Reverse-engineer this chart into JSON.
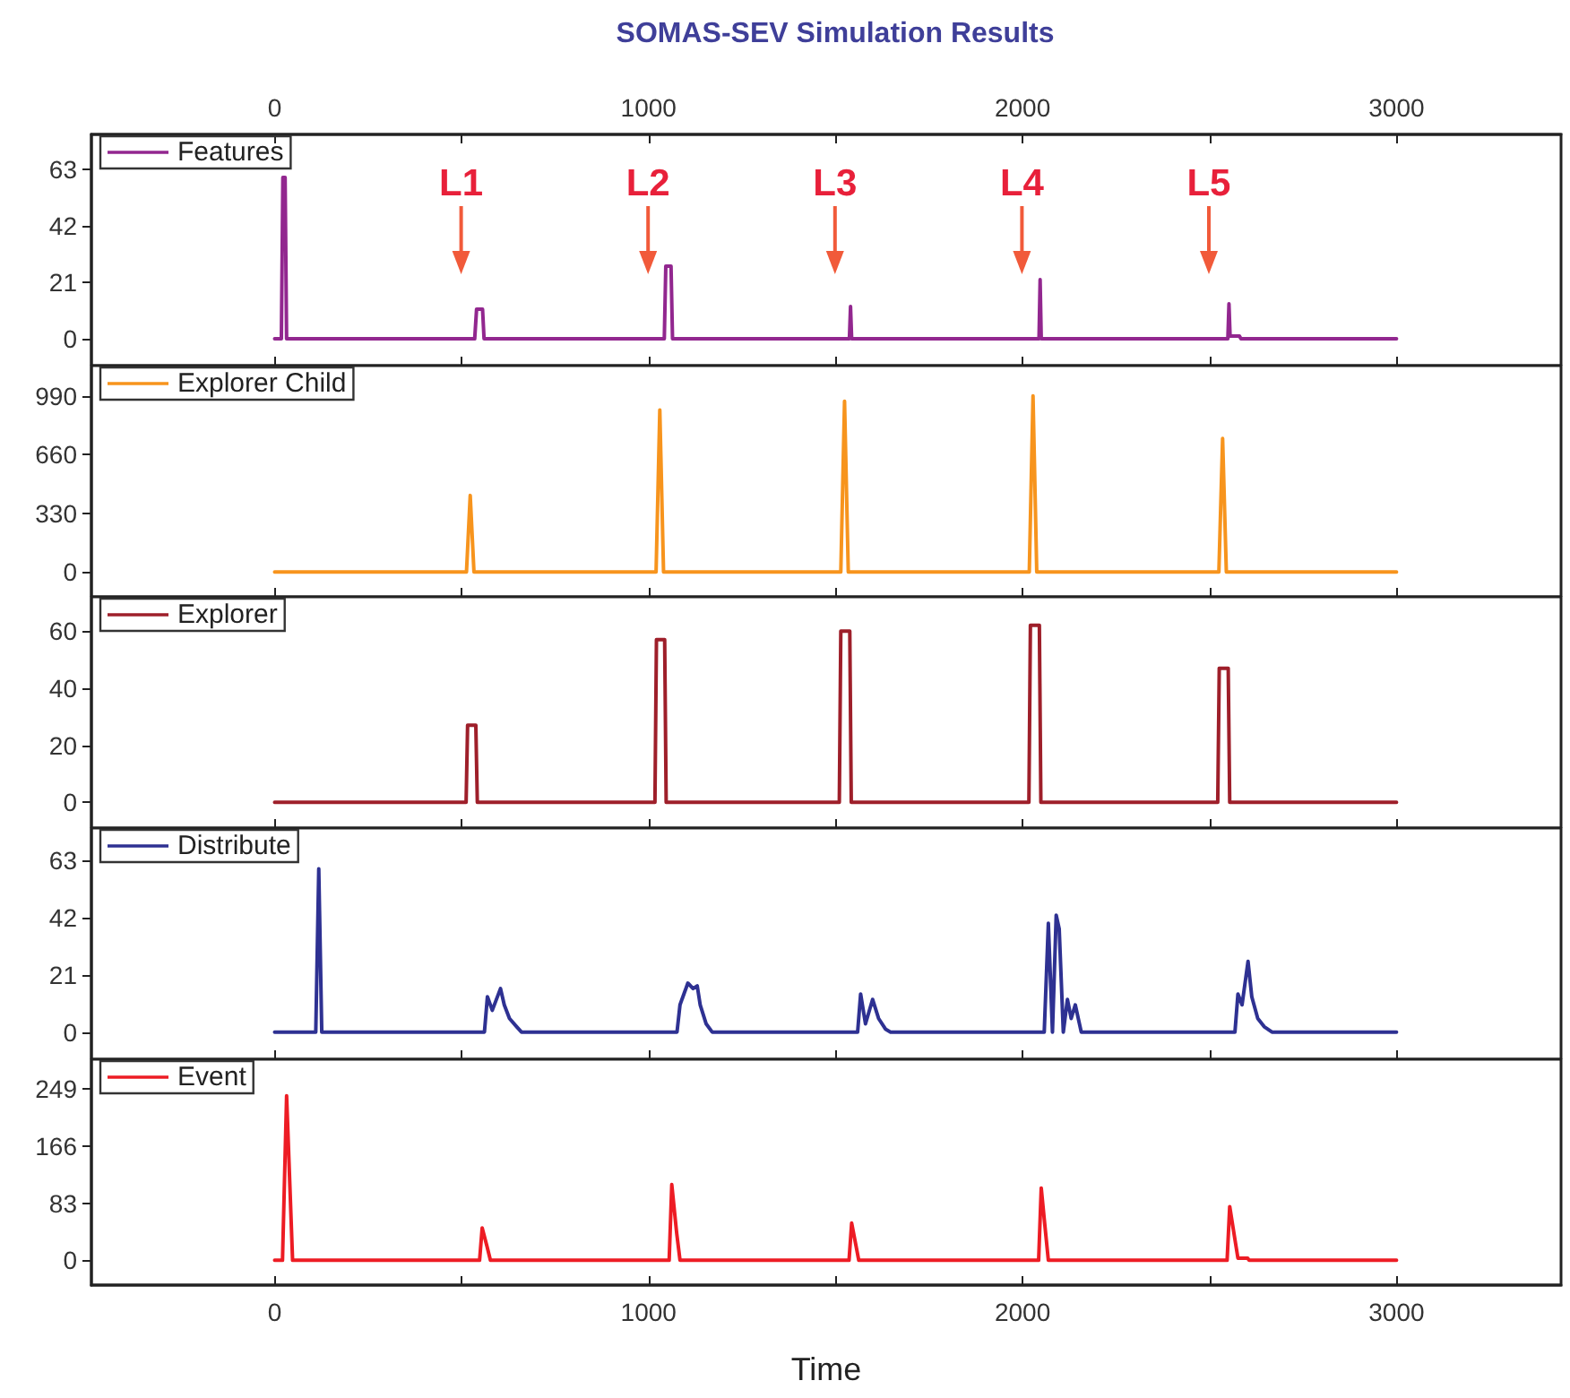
{
  "chart_data": [
    {
      "type": "line",
      "title": "SOMAS-SEV Simulation Results",
      "legend": "top left",
      "marker": "none",
      "line_style": "solid",
      "grid": false,
      "tick_labels": "y",
      "xlim": [
        -490,
        3440
      ],
      "xticks": [
        0,
        {
          "value": 500,
          "label": null
        },
        1000,
        {
          "value": 1500,
          "label": null
        },
        2000,
        {
          "value": 2500,
          "label": null
        },
        3000
      ],
      "x2lim": [
        -490,
        3440
      ],
      "x2ticks": [
        0,
        {
          "value": 500,
          "label": null
        },
        1000,
        {
          "value": 1500,
          "label": null
        },
        2000,
        {
          "value": 2500,
          "label": null
        },
        3000
      ],
      "ylim": [
        -10,
        76
      ],
      "yticks": [
        0,
        21,
        42,
        63
      ],
      "x": [
        0,
        18,
        22,
        28,
        32,
        535,
        540,
        556,
        560,
        1042,
        1046,
        1060,
        1064,
        1537,
        1540,
        1543,
        2044,
        2047,
        2050,
        2549,
        2552,
        2555,
        2580,
        2584,
        3000
      ],
      "series": [
        {
          "name": "Features",
          "color": "#92278f",
          "values": [
            0,
            0,
            60,
            60,
            0,
            0,
            11,
            11,
            0,
            0,
            27,
            27,
            0,
            0,
            12,
            0,
            0,
            22,
            0,
            0,
            13,
            1,
            1,
            0,
            0
          ]
        }
      ],
      "annotations": [
        "L1",
        "L2",
        "L3",
        "L4",
        "L5"
      ]
    },
    {
      "type": "line",
      "legend": "top left",
      "marker": "none",
      "line_style": "solid",
      "grid": false,
      "tick_labels": "y",
      "xlim": [
        -490,
        3440
      ],
      "xticks": [
        0,
        {
          "value": 500,
          "label": null
        },
        1000,
        {
          "value": 1500,
          "label": null
        },
        2000,
        {
          "value": 2500,
          "label": null
        },
        3000
      ],
      "ylim": [
        -140,
        1160
      ],
      "yticks": [
        0,
        330,
        660,
        990
      ],
      "x": [
        0,
        513,
        523,
        533,
        1020,
        1030,
        1040,
        1514,
        1524,
        1534,
        2018,
        2028,
        2038,
        2525,
        2535,
        2545,
        3000
      ],
      "series": [
        {
          "name": "Explorer Child",
          "color": "#f7941d",
          "values": [
            0,
            0,
            430,
            0,
            0,
            910,
            0,
            0,
            960,
            0,
            0,
            990,
            0,
            0,
            750,
            0,
            0
          ]
        }
      ]
    },
    {
      "type": "line",
      "legend": "top left",
      "marker": "none",
      "line_style": "solid",
      "grid": false,
      "tick_labels": "y",
      "xlim": [
        -490,
        3440
      ],
      "xticks": [
        0,
        {
          "value": 500,
          "label": null
        },
        1000,
        {
          "value": 1500,
          "label": null
        },
        2000,
        {
          "value": 2500,
          "label": null
        },
        3000
      ],
      "ylim": [
        -9,
        72
      ],
      "yticks": [
        0,
        20,
        40,
        60
      ],
      "x": [
        0,
        512,
        516,
        538,
        542,
        1017,
        1021,
        1043,
        1047,
        1510,
        1514,
        1538,
        1542,
        2017,
        2021,
        2045,
        2049,
        2522,
        2526,
        2550,
        2554,
        3000
      ],
      "series": [
        {
          "name": "Explorer",
          "color": "#9e1f2a",
          "values": [
            0,
            0,
            27,
            27,
            0,
            0,
            57,
            57,
            0,
            0,
            60,
            60,
            0,
            0,
            62,
            62,
            0,
            0,
            47,
            47,
            0,
            0
          ]
        }
      ]
    },
    {
      "type": "line",
      "legend": "top left",
      "marker": "none",
      "line_style": "solid",
      "grid": false,
      "tick_labels": "y",
      "xlim": [
        -490,
        3440
      ],
      "xticks": [
        0,
        {
          "value": 500,
          "label": null
        },
        1000,
        {
          "value": 1500,
          "label": null
        },
        2000,
        {
          "value": 2500,
          "label": null
        },
        3000
      ],
      "ylim": [
        -10,
        75
      ],
      "yticks": [
        0,
        21,
        42,
        63
      ],
      "x": [
        0,
        110,
        118,
        126,
        561,
        569,
        582,
        604,
        614,
        628,
        647,
        660,
        1076,
        1084,
        1105,
        1119,
        1130,
        1138,
        1154,
        1170,
        1559,
        1567,
        1580,
        1599,
        1615,
        1634,
        1647,
        2058,
        2069,
        2080,
        2090,
        2098,
        2109,
        2120,
        2130,
        2141,
        2157,
        2568,
        2576,
        2587,
        2603,
        2613,
        2629,
        2646,
        2667,
        3000
      ],
      "series": [
        {
          "name": "Distribute",
          "color": "#2e3192",
          "values": [
            0,
            0,
            60,
            0,
            0,
            13,
            8,
            16,
            10,
            5,
            2,
            0,
            0,
            10,
            18,
            16,
            17,
            10,
            3,
            0,
            0,
            14,
            3,
            12,
            5,
            1,
            0,
            0,
            40,
            0,
            43,
            38,
            0,
            12,
            5,
            10,
            0,
            0,
            14,
            10,
            26,
            13,
            5,
            2,
            0,
            0
          ]
        }
      ]
    },
    {
      "type": "line",
      "xlabel": "Time",
      "legend": "top left",
      "marker": "none",
      "line_style": "solid",
      "grid": false,
      "xlim": [
        -490,
        3440
      ],
      "xticks": [
        0,
        {
          "value": 500,
          "label": null
        },
        1000,
        {
          "value": 1500,
          "label": null
        },
        2000,
        {
          "value": 2500,
          "label": null
        },
        3000
      ],
      "ylim": [
        -36,
        292
      ],
      "yticks": [
        0,
        83,
        166,
        249
      ],
      "x": [
        0,
        21,
        32,
        48,
        548,
        555,
        568,
        577,
        1055,
        1062,
        1075,
        1084,
        1536,
        1543,
        1555,
        1562,
        2043,
        2050,
        2058,
        2069,
        2547,
        2554,
        2568,
        2576,
        2602,
        2606,
        3000
      ],
      "series": [
        {
          "name": "Event",
          "color": "#ed1c24",
          "values": [
            0,
            0,
            239,
            0,
            0,
            47,
            20,
            0,
            0,
            110,
            40,
            0,
            0,
            54,
            20,
            0,
            0,
            105,
            60,
            0,
            0,
            78,
            30,
            3,
            3,
            0,
            0
          ]
        }
      ]
    }
  ]
}
